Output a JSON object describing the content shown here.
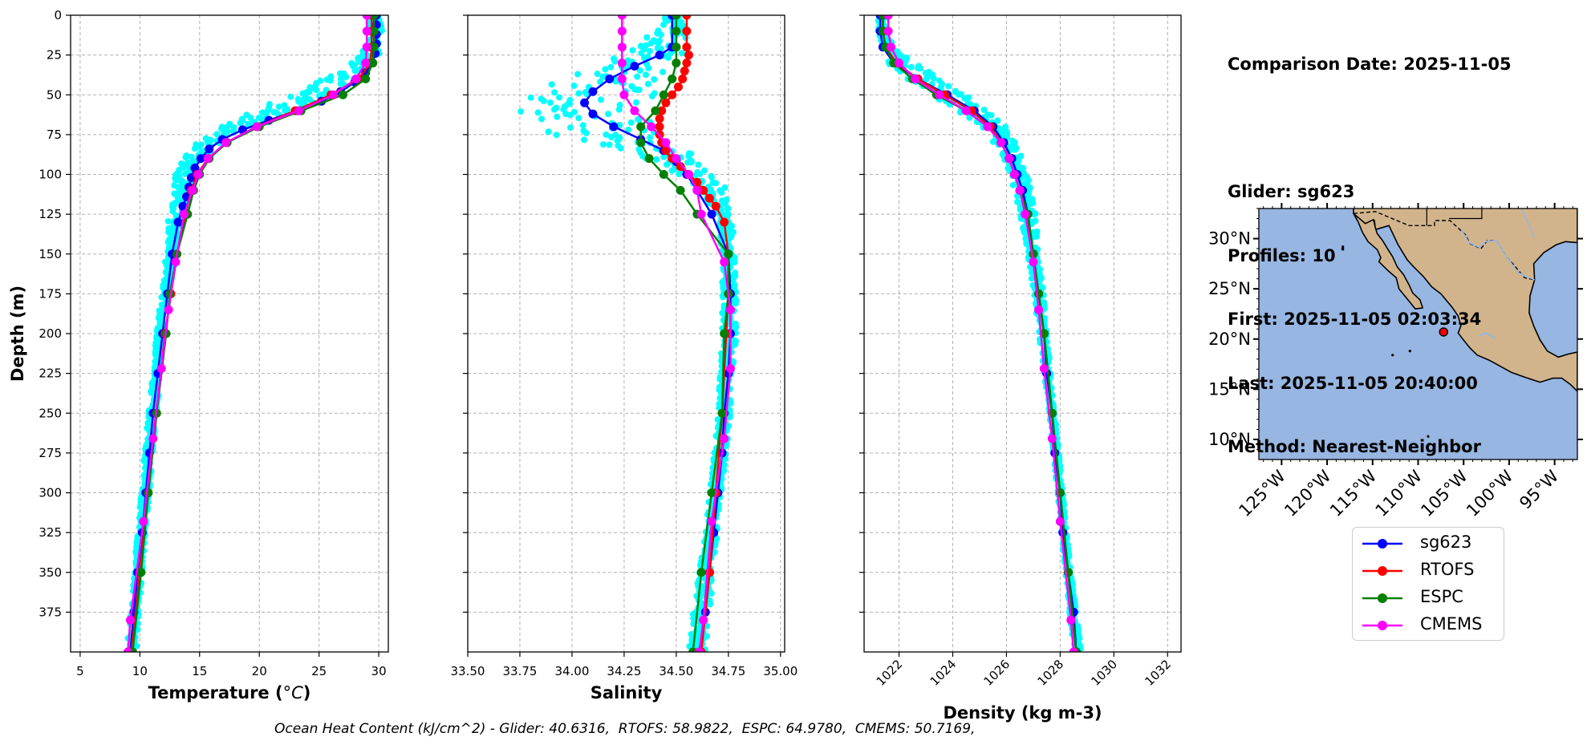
{
  "info": {
    "comparison_date": "Comparison Date: 2025-11-05",
    "glider": "Glider: sg623",
    "profiles": "Profiles: 10",
    "first": "First: 2025-11-05 02:03:34",
    "last": "Last: 2025-11-05 20:40:00",
    "method": "Method: Nearest-Neighbor"
  },
  "footer": "Ocean Heat Content (kJ/cm^2) - Glider: 40.6316,  RTOFS: 58.9822,  ESPC: 64.9780,  CMEMS: 50.7169,",
  "legend": [
    {
      "name": "sg623",
      "color": "#0000ff"
    },
    {
      "name": "RTOFS",
      "color": "#ff0000"
    },
    {
      "name": "ESPC",
      "color": "#008000"
    },
    {
      "name": "CMEMS",
      "color": "#ff00ff"
    }
  ],
  "colors": {
    "glider_scatter": "#00ffff",
    "land": "#d2b48c",
    "ocean": "#97b6e1",
    "lakes": "#97b6e1"
  },
  "chart_data": [
    {
      "type": "line",
      "xlabel": "Temperature (°C)",
      "ylabel": "Depth (m)",
      "xlim": [
        4.2,
        30.8
      ],
      "ylim": [
        400,
        0
      ],
      "xticks": [
        5,
        10,
        15,
        20,
        25,
        30
      ],
      "yticks": [
        0,
        25,
        50,
        75,
        100,
        125,
        150,
        175,
        200,
        225,
        250,
        275,
        300,
        325,
        350,
        375
      ],
      "grid": true,
      "scatter_band": {
        "name": "glider profiles",
        "color": "#00ffff",
        "depth": [
          0,
          10,
          20,
          30,
          40,
          50,
          60,
          70,
          80,
          90,
          100,
          110,
          125,
          150,
          175,
          200,
          225,
          250,
          275,
          300,
          325,
          350,
          375,
          400
        ],
        "min": [
          29.0,
          29.0,
          28.9,
          27.8,
          25.2,
          22.5,
          19.5,
          16.8,
          14.8,
          13.6,
          13.0,
          12.7,
          12.4,
          12.2,
          11.8,
          11.4,
          11.1,
          10.7,
          10.4,
          10.1,
          9.8,
          9.5,
          9.2,
          8.9
        ],
        "max": [
          30.3,
          30.3,
          30.2,
          29.8,
          28.6,
          26.3,
          22.8,
          19.2,
          16.7,
          15.1,
          14.5,
          14.3,
          13.9,
          13.0,
          12.5,
          12.0,
          11.7,
          11.4,
          11.1,
          10.8,
          10.5,
          10.2,
          9.9,
          9.7
        ]
      },
      "series": [
        {
          "name": "sg623",
          "color": "#0000ff",
          "depth": [
            0,
            6,
            12,
            18,
            24,
            30,
            36,
            42,
            48,
            54,
            60,
            66,
            72,
            78,
            84,
            90,
            96,
            102,
            108,
            114,
            120,
            130,
            150,
            175,
            200,
            225,
            250,
            275,
            300,
            325,
            350,
            375,
            400
          ],
          "values": [
            29.8,
            29.8,
            29.8,
            29.8,
            29.7,
            29.5,
            28.9,
            28.0,
            26.8,
            25.2,
            23.1,
            20.8,
            18.6,
            16.9,
            15.8,
            15.1,
            14.6,
            14.3,
            14.1,
            13.9,
            13.6,
            13.2,
            12.7,
            12.3,
            11.9,
            11.5,
            11.1,
            10.8,
            10.5,
            10.2,
            9.8,
            9.5,
            9.2
          ],
          "markers": true
        },
        {
          "name": "RTOFS",
          "color": "#ff0000",
          "depth": [
            0,
            10,
            20,
            30,
            40,
            50,
            60,
            70,
            80,
            90,
            100,
            110,
            125,
            150,
            175,
            200,
            250,
            300,
            350,
            400
          ],
          "values": [
            29.4,
            29.4,
            29.4,
            29.3,
            28.3,
            26.0,
            23.0,
            19.8,
            17.3,
            15.7,
            14.8,
            14.3,
            13.8,
            13.1,
            12.6,
            12.1,
            11.4,
            10.7,
            10.0,
            9.3
          ],
          "markers": true
        },
        {
          "name": "ESPC",
          "color": "#008000",
          "depth": [
            0,
            10,
            20,
            30,
            40,
            50,
            60,
            70,
            80,
            90,
            100,
            110,
            125,
            150,
            175,
            200,
            250,
            300,
            350,
            400
          ],
          "values": [
            29.6,
            29.6,
            29.6,
            29.5,
            28.9,
            27.0,
            23.5,
            20.0,
            17.3,
            15.8,
            15.0,
            14.5,
            14.0,
            13.1,
            12.5,
            12.2,
            11.4,
            10.7,
            10.1,
            9.4
          ],
          "markers": true
        },
        {
          "name": "CMEMS",
          "color": "#ff00ff",
          "depth": [
            0,
            10,
            20,
            30,
            40,
            50,
            60,
            70,
            80,
            90,
            100,
            110,
            125,
            155,
            185,
            222,
            266,
            318,
            380,
            400
          ],
          "values": [
            29.0,
            29.0,
            29.0,
            28.9,
            28.1,
            26.2,
            23.3,
            19.8,
            17.2,
            15.7,
            14.9,
            14.4,
            13.7,
            13.0,
            12.4,
            11.8,
            11.1,
            10.3,
            9.2,
            9.0
          ],
          "markers": true
        }
      ]
    },
    {
      "type": "line",
      "xlabel": "Salinity",
      "ylim": [
        400,
        0
      ],
      "xlim": [
        33.5,
        35.02
      ],
      "xticks": [
        33.5,
        33.75,
        34.0,
        34.25,
        34.5,
        34.75,
        35.0
      ],
      "grid": true,
      "scatter_band": {
        "name": "glider profiles",
        "color": "#00ffff",
        "depth": [
          0,
          10,
          20,
          30,
          40,
          50,
          55,
          60,
          65,
          70,
          75,
          80,
          90,
          100,
          110,
          125,
          150,
          175,
          200,
          225,
          250,
          275,
          300,
          325,
          350,
          375,
          400
        ],
        "min": [
          34.45,
          34.4,
          34.3,
          34.15,
          33.95,
          33.8,
          33.72,
          33.73,
          33.8,
          33.85,
          33.9,
          34.1,
          34.35,
          34.52,
          34.62,
          34.68,
          34.72,
          34.72,
          34.72,
          34.71,
          34.7,
          34.68,
          34.66,
          34.64,
          34.61,
          34.58,
          34.56
        ],
        "max": [
          34.52,
          34.55,
          34.55,
          34.5,
          34.48,
          34.42,
          34.4,
          34.38,
          34.37,
          34.4,
          34.42,
          34.5,
          34.62,
          34.7,
          34.74,
          34.77,
          34.78,
          34.79,
          34.79,
          34.77,
          34.76,
          34.74,
          34.72,
          34.7,
          34.68,
          34.66,
          34.64
        ]
      },
      "series": [
        {
          "name": "sg623",
          "color": "#0000ff",
          "depth": [
            0,
            20,
            25,
            32,
            40,
            48,
            55,
            62,
            70,
            78,
            85,
            92,
            100,
            110,
            125,
            150,
            175,
            200,
            225,
            250,
            275,
            300,
            325,
            350,
            375,
            400
          ],
          "values": [
            34.48,
            34.48,
            34.42,
            34.3,
            34.18,
            34.1,
            34.06,
            34.1,
            34.2,
            34.33,
            34.44,
            34.5,
            34.55,
            34.6,
            34.67,
            34.75,
            34.76,
            34.76,
            34.75,
            34.73,
            34.72,
            34.7,
            34.68,
            34.66,
            34.64,
            34.61
          ],
          "markers": true
        },
        {
          "name": "RTOFS",
          "color": "#ff0000",
          "depth": [
            0,
            10,
            20,
            25,
            30,
            35,
            40,
            45,
            50,
            55,
            60,
            65,
            70,
            75,
            80,
            85,
            90,
            95,
            100,
            105,
            110,
            115,
            120,
            130,
            150,
            175,
            200,
            250,
            300,
            350,
            400
          ],
          "values": [
            34.55,
            34.55,
            34.55,
            34.56,
            34.55,
            34.54,
            34.53,
            34.51,
            34.48,
            34.45,
            34.43,
            34.42,
            34.42,
            34.42,
            34.43,
            34.45,
            34.48,
            34.52,
            34.56,
            34.6,
            34.63,
            34.66,
            34.69,
            34.73,
            34.75,
            34.75,
            34.74,
            34.72,
            34.69,
            34.66,
            34.62
          ],
          "markers": true
        },
        {
          "name": "ESPC",
          "color": "#008000",
          "depth": [
            0,
            10,
            20,
            30,
            40,
            50,
            60,
            70,
            80,
            90,
            100,
            110,
            125,
            150,
            175,
            200,
            250,
            300,
            350,
            400
          ],
          "values": [
            34.5,
            34.5,
            34.5,
            34.5,
            34.48,
            34.44,
            34.4,
            34.33,
            34.33,
            34.37,
            34.44,
            34.52,
            34.6,
            34.75,
            34.75,
            34.73,
            34.72,
            34.67,
            34.62,
            34.58
          ],
          "markers": true
        },
        {
          "name": "CMEMS",
          "color": "#ff00ff",
          "depth": [
            0,
            10,
            20,
            30,
            40,
            50,
            60,
            70,
            80,
            90,
            100,
            110,
            125,
            155,
            185,
            222,
            266,
            318,
            380,
            400
          ],
          "values": [
            34.24,
            34.24,
            34.24,
            34.24,
            34.24,
            34.25,
            34.3,
            34.38,
            34.45,
            34.5,
            34.56,
            34.6,
            34.62,
            34.73,
            34.76,
            34.76,
            34.73,
            34.67,
            34.63,
            34.61
          ],
          "markers": true
        }
      ]
    },
    {
      "type": "line",
      "xlabel": "Density (kg m-3)",
      "ylim": [
        400,
        0
      ],
      "xlim": [
        1020.7,
        1032.5
      ],
      "xticks": [
        1022,
        1024,
        1026,
        1028,
        1030,
        1032
      ],
      "grid": true,
      "scatter_band": {
        "name": "glider profiles",
        "color": "#00ffff",
        "depth": [
          0,
          10,
          20,
          30,
          40,
          50,
          60,
          70,
          80,
          90,
          100,
          110,
          125,
          150,
          175,
          200,
          250,
          300,
          350,
          400
        ],
        "min": [
          1021.2,
          1021.2,
          1021.3,
          1021.6,
          1022.2,
          1023.2,
          1024.2,
          1025.0,
          1025.5,
          1025.9,
          1026.1,
          1026.3,
          1026.5,
          1026.8,
          1027.0,
          1027.2,
          1027.6,
          1027.9,
          1028.2,
          1028.5
        ],
        "max": [
          1021.5,
          1021.5,
          1021.8,
          1022.6,
          1023.6,
          1024.5,
          1025.4,
          1026.0,
          1026.4,
          1026.6,
          1026.8,
          1026.9,
          1027.1,
          1027.2,
          1027.4,
          1027.5,
          1027.8,
          1028.1,
          1028.4,
          1028.8
        ]
      },
      "series": [
        {
          "name": "sg623",
          "color": "#0000ff",
          "depth": [
            0,
            10,
            20,
            30,
            40,
            50,
            60,
            70,
            80,
            90,
            100,
            110,
            125,
            150,
            175,
            200,
            225,
            250,
            275,
            300,
            325,
            350,
            375,
            400
          ],
          "values": [
            1021.3,
            1021.3,
            1021.4,
            1021.8,
            1022.7,
            1023.8,
            1024.8,
            1025.5,
            1025.9,
            1026.2,
            1026.4,
            1026.6,
            1026.8,
            1027.0,
            1027.2,
            1027.4,
            1027.5,
            1027.7,
            1027.8,
            1028.0,
            1028.1,
            1028.3,
            1028.5,
            1028.6
          ],
          "markers": true
        },
        {
          "name": "RTOFS",
          "color": "#ff0000",
          "depth": [
            0,
            10,
            20,
            30,
            40,
            50,
            60,
            70,
            80,
            90,
            100,
            110,
            125,
            150,
            175,
            200,
            250,
            300,
            350,
            400
          ],
          "values": [
            1021.4,
            1021.4,
            1021.5,
            1021.9,
            1022.7,
            1023.7,
            1024.7,
            1025.4,
            1025.8,
            1026.1,
            1026.3,
            1026.5,
            1026.7,
            1027.0,
            1027.2,
            1027.4,
            1027.7,
            1028.0,
            1028.3,
            1028.6
          ],
          "markers": true
        },
        {
          "name": "ESPC",
          "color": "#008000",
          "depth": [
            0,
            10,
            20,
            30,
            40,
            50,
            60,
            70,
            80,
            90,
            100,
            110,
            125,
            150,
            175,
            200,
            250,
            300,
            350,
            400
          ],
          "values": [
            1021.4,
            1021.4,
            1021.5,
            1021.8,
            1022.5,
            1023.4,
            1024.5,
            1025.3,
            1025.8,
            1026.1,
            1026.3,
            1026.5,
            1026.8,
            1027.0,
            1027.2,
            1027.4,
            1027.7,
            1028.0,
            1028.3,
            1028.6
          ],
          "markers": true
        },
        {
          "name": "CMEMS",
          "color": "#ff00ff",
          "depth": [
            0,
            10,
            20,
            30,
            40,
            50,
            60,
            70,
            80,
            90,
            100,
            110,
            125,
            155,
            185,
            222,
            266,
            318,
            380,
            400
          ],
          "values": [
            1021.6,
            1021.6,
            1021.7,
            1022.0,
            1022.6,
            1023.5,
            1024.5,
            1025.3,
            1025.8,
            1026.1,
            1026.3,
            1026.5,
            1026.7,
            1027.0,
            1027.2,
            1027.4,
            1027.7,
            1028.0,
            1028.4,
            1028.5
          ],
          "markers": true
        }
      ]
    },
    {
      "type": "map",
      "region": "Mexico / Eastern Pacific",
      "lon_range": [
        -127.5,
        -92.5
      ],
      "lat_range": [
        8,
        33
      ],
      "xticks": [
        -125,
        -120,
        -115,
        -110,
        -105,
        -100,
        -95
      ],
      "xticklabels": [
        "125°W",
        "120°W",
        "115°W",
        "110°W",
        "105°W",
        "100°W",
        "95°W"
      ],
      "yticks": [
        10,
        15,
        20,
        25,
        30
      ],
      "yticklabels": [
        "10°N",
        "15°N",
        "20°N",
        "25°N",
        "30°N"
      ],
      "glider_position": {
        "lon": -107.2,
        "lat": 20.7,
        "color": "#ff0000"
      }
    }
  ]
}
